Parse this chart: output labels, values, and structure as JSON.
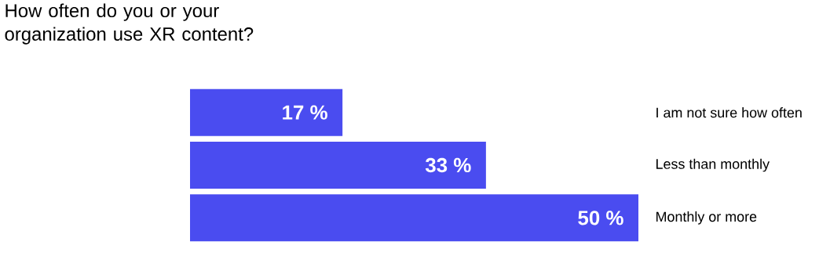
{
  "chart_data": {
    "type": "bar",
    "orientation": "horizontal",
    "title": "How often do you or your organization use XR content?",
    "categories": [
      "I am not sure how often",
      "Less than monthly",
      "Monthly or more"
    ],
    "values": [
      17,
      33,
      50
    ],
    "value_labels": [
      "17 %",
      "33 %",
      "50 %"
    ],
    "color": "#4a4cf0"
  }
}
